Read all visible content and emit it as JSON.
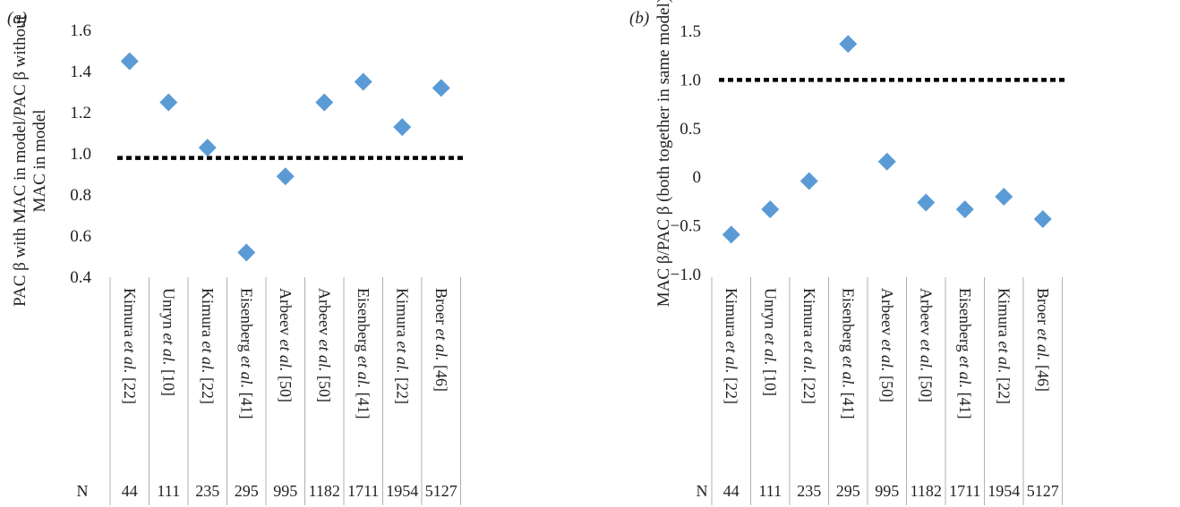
{
  "chart_data": [
    {
      "type": "scatter",
      "panel_label": "(a)",
      "ylabel": "PAC β with MAC in model/PAC β without MAC in model",
      "ylabel_lines": [
        "PAC β with MAC in model/PAC β without",
        "MAC in model"
      ],
      "ylim": [
        0.4,
        1.6
      ],
      "yticks": [
        "0.4",
        "0.6",
        "0.8",
        "1.0",
        "1.2",
        "1.4",
        "1.6"
      ],
      "reference_line": 0.98,
      "categories": [
        {
          "author": "Kimura",
          "etal": "et al.",
          "ref": "[22]",
          "n": "44"
        },
        {
          "author": "Unryn",
          "etal": "et al.",
          "ref": "[10]",
          "n": "111"
        },
        {
          "author": "Kimura",
          "etal": "et al.",
          "ref": "[22]",
          "n": "235"
        },
        {
          "author": "Eisenberg",
          "etal": "et al.",
          "ref": "[41]",
          "n": "295"
        },
        {
          "author": "Arbeev",
          "etal": "et al.",
          "ref": "[50]",
          "n": "995"
        },
        {
          "author": "Arbeev",
          "etal": "et al.",
          "ref": "[50]",
          "n": "1182"
        },
        {
          "author": "Eisenberg",
          "etal": "et al.",
          "ref": "[41]",
          "n": "1711"
        },
        {
          "author": "Kimura",
          "etal": "et al.",
          "ref": "[22]",
          "n": "1954"
        },
        {
          "author": "Broer",
          "etal": "et al.",
          "ref": "[46]",
          "n": "5127"
        }
      ],
      "values": [
        1.45,
        1.25,
        1.03,
        0.52,
        0.89,
        1.25,
        1.35,
        1.13,
        1.32
      ],
      "n_label": "N",
      "marker_color": "#5b9bd5"
    },
    {
      "type": "scatter",
      "panel_label": "(b)",
      "ylabel": "MAC β/PAC β (both together in same model)",
      "ylabel_lines": [
        "MAC β/PAC β (both together in same model)"
      ],
      "ylim": [
        -1.0,
        1.5
      ],
      "yticks": [
        "−1.0",
        "−0.5",
        "0",
        "0.5",
        "1.0",
        "1.5"
      ],
      "reference_line": 1.0,
      "categories": [
        {
          "author": "Kimura",
          "etal": "et al.",
          "ref": "[22]",
          "n": "44"
        },
        {
          "author": "Unryn",
          "etal": "et al.",
          "ref": "[10]",
          "n": "111"
        },
        {
          "author": "Kimura",
          "etal": "et al.",
          "ref": "[22]",
          "n": "235"
        },
        {
          "author": "Eisenberg",
          "etal": "et al.",
          "ref": "[41]",
          "n": "295"
        },
        {
          "author": "Arbeev",
          "etal": "et al.",
          "ref": "[50]",
          "n": "995"
        },
        {
          "author": "Arbeev",
          "etal": "et al.",
          "ref": "[50]",
          "n": "1182"
        },
        {
          "author": "Eisenberg",
          "etal": "et al.",
          "ref": "[41]",
          "n": "1711"
        },
        {
          "author": "Kimura",
          "etal": "et al.",
          "ref": "[22]",
          "n": "1954"
        },
        {
          "author": "Broer",
          "etal": "et al.",
          "ref": "[46]",
          "n": "5127"
        }
      ],
      "values": [
        -0.59,
        -0.33,
        -0.04,
        1.37,
        0.16,
        -0.26,
        -0.33,
        -0.2,
        -0.43
      ],
      "n_label": "N",
      "marker_color": "#5b9bd5"
    }
  ]
}
